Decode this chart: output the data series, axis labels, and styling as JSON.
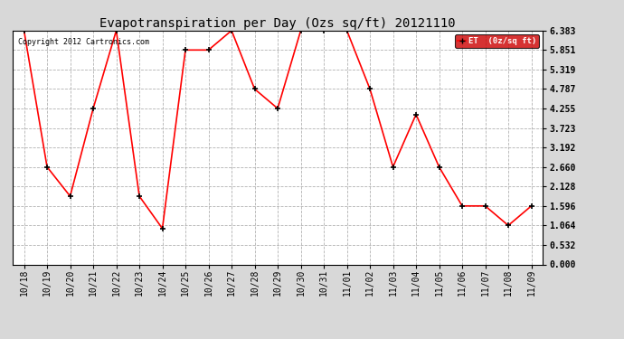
{
  "title": "Evapotranspiration per Day (Ozs sq/ft) 20121110",
  "copyright_text": "Copyright 2012 Cartronics.com",
  "legend_label": "ET  (0z/sq ft)",
  "x_labels": [
    "10/18",
    "10/19",
    "10/20",
    "10/21",
    "10/22",
    "10/23",
    "10/24",
    "10/25",
    "10/26",
    "10/27",
    "10/28",
    "10/29",
    "10/30",
    "10/31",
    "11/01",
    "11/02",
    "11/03",
    "11/04",
    "11/05",
    "11/06",
    "11/07",
    "11/08",
    "11/09"
  ],
  "y_values": [
    6.383,
    2.66,
    1.862,
    4.255,
    6.383,
    1.862,
    0.98,
    5.851,
    5.851,
    6.383,
    4.787,
    4.255,
    6.383,
    6.383,
    6.383,
    4.787,
    2.66,
    4.094,
    2.66,
    1.596,
    1.596,
    1.064,
    1.596
  ],
  "ylim": [
    0.0,
    6.383
  ],
  "yticks": [
    0.0,
    0.532,
    1.064,
    1.596,
    2.128,
    2.66,
    3.192,
    3.723,
    4.255,
    4.787,
    5.319,
    5.851,
    6.383
  ],
  "line_color": "red",
  "marker_color": "black",
  "background_color": "#d8d8d8",
  "plot_bg_color": "#ffffff",
  "grid_color": "#aaaaaa",
  "title_fontsize": 10,
  "tick_fontsize": 7,
  "copyright_fontsize": 6,
  "legend_bg": "#cc0000",
  "legend_fg": "#ffffff"
}
